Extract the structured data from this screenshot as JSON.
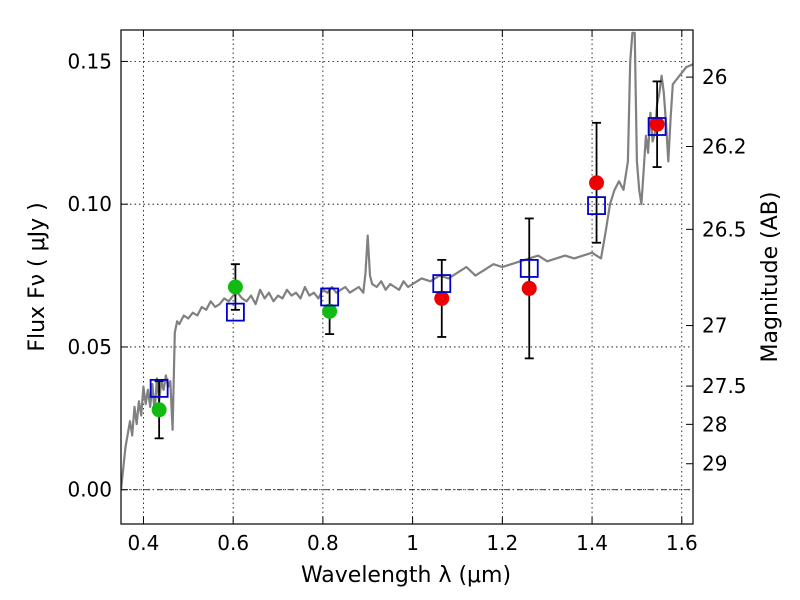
{
  "chart_data": {
    "type": "scatter",
    "xlabel": "Wavelength  λ (μm)",
    "ylabel": "Flux  Fν  ( μJy )",
    "y2label": "Magnitude (AB)",
    "xlim": [
      0.35,
      1.625
    ],
    "ylim": [
      -0.012,
      0.161
    ],
    "xticks": [
      0.4,
      0.6,
      0.8,
      1.0,
      1.2,
      1.4,
      1.6
    ],
    "xtick_labels": [
      "0.4",
      "0.6",
      "0.8",
      "1",
      "1.2",
      "1.4",
      "1.6"
    ],
    "yticks": [
      0.0,
      0.05,
      0.1,
      0.15
    ],
    "ytick_labels": [
      "0.00",
      "0.05",
      "0.10",
      "0.15"
    ],
    "y2ticks": [
      {
        "label": "26",
        "flux": 0.1445
      },
      {
        "label": "26.2",
        "flux": 0.1202
      },
      {
        "label": "26.5",
        "flux": 0.0912
      },
      {
        "label": "27",
        "flux": 0.0575
      },
      {
        "label": "27.5",
        "flux": 0.0363
      },
      {
        "label": "28",
        "flux": 0.0229
      },
      {
        "label": "29",
        "flux": 0.0091
      }
    ],
    "grid": true,
    "zero_line": true,
    "colors": {
      "sed": "#808080",
      "green_points": "#11bb11",
      "red_points": "#ee0000",
      "model_boxes": "#0000cc",
      "errorbars": "#000000"
    },
    "sed_model": {
      "x": [
        0.35,
        0.36,
        0.37,
        0.375,
        0.38,
        0.385,
        0.39,
        0.395,
        0.4,
        0.405,
        0.41,
        0.415,
        0.42,
        0.425,
        0.43,
        0.435,
        0.44,
        0.445,
        0.45,
        0.455,
        0.46,
        0.465,
        0.47,
        0.475,
        0.48,
        0.49,
        0.5,
        0.51,
        0.52,
        0.53,
        0.54,
        0.55,
        0.56,
        0.57,
        0.58,
        0.59,
        0.6,
        0.61,
        0.62,
        0.63,
        0.64,
        0.65,
        0.66,
        0.67,
        0.68,
        0.69,
        0.7,
        0.71,
        0.72,
        0.73,
        0.74,
        0.75,
        0.76,
        0.77,
        0.78,
        0.79,
        0.8,
        0.81,
        0.82,
        0.83,
        0.84,
        0.85,
        0.86,
        0.87,
        0.88,
        0.89,
        0.895,
        0.9,
        0.905,
        0.91,
        0.92,
        0.93,
        0.94,
        0.95,
        0.96,
        0.97,
        0.98,
        0.99,
        1.0,
        1.02,
        1.04,
        1.06,
        1.08,
        1.1,
        1.12,
        1.14,
        1.16,
        1.18,
        1.2,
        1.22,
        1.24,
        1.26,
        1.28,
        1.3,
        1.32,
        1.34,
        1.36,
        1.38,
        1.4,
        1.41,
        1.42,
        1.43,
        1.44,
        1.45,
        1.46,
        1.47,
        1.48,
        1.485,
        1.49,
        1.495,
        1.5,
        1.505,
        1.51,
        1.515,
        1.52,
        1.525,
        1.53,
        1.535,
        1.54,
        1.545,
        1.55,
        1.555,
        1.56,
        1.565,
        1.57,
        1.575,
        1.58,
        1.59,
        1.6,
        1.61,
        1.625
      ],
      "y": [
        0.0,
        0.015,
        0.024,
        0.019,
        0.029,
        0.023,
        0.031,
        0.026,
        0.036,
        0.03,
        0.035,
        0.029,
        0.037,
        0.027,
        0.039,
        0.031,
        0.038,
        0.035,
        0.04,
        0.036,
        0.038,
        0.021,
        0.055,
        0.059,
        0.058,
        0.061,
        0.06,
        0.062,
        0.061,
        0.064,
        0.063,
        0.066,
        0.064,
        0.065,
        0.067,
        0.066,
        0.068,
        0.069,
        0.067,
        0.066,
        0.068,
        0.065,
        0.07,
        0.067,
        0.069,
        0.066,
        0.068,
        0.067,
        0.07,
        0.068,
        0.069,
        0.067,
        0.071,
        0.068,
        0.069,
        0.067,
        0.07,
        0.069,
        0.071,
        0.069,
        0.07,
        0.071,
        0.069,
        0.07,
        0.071,
        0.069,
        0.076,
        0.089,
        0.075,
        0.072,
        0.071,
        0.073,
        0.07,
        0.072,
        0.071,
        0.07,
        0.073,
        0.071,
        0.072,
        0.074,
        0.073,
        0.075,
        0.074,
        0.076,
        0.078,
        0.075,
        0.077,
        0.079,
        0.078,
        0.079,
        0.08,
        0.081,
        0.082,
        0.08,
        0.081,
        0.082,
        0.081,
        0.082,
        0.083,
        0.082,
        0.081,
        0.09,
        0.1,
        0.105,
        0.108,
        0.105,
        0.115,
        0.15,
        0.16,
        0.16,
        0.115,
        0.105,
        0.1,
        0.112,
        0.124,
        0.118,
        0.132,
        0.122,
        0.125,
        0.135,
        0.139,
        0.145,
        0.139,
        0.128,
        0.115,
        0.13,
        0.142,
        0.144,
        0.146,
        0.148,
        0.149
      ]
    },
    "observed_green": [
      {
        "x": 0.435,
        "y": 0.028,
        "err": 0.01
      },
      {
        "x": 0.605,
        "y": 0.071,
        "err": 0.008
      },
      {
        "x": 0.815,
        "y": 0.0625,
        "err": 0.008
      }
    ],
    "observed_red": [
      {
        "x": 1.065,
        "y": 0.067,
        "err": 0.0135
      },
      {
        "x": 1.26,
        "y": 0.0705,
        "err": 0.0245
      },
      {
        "x": 1.41,
        "y": 0.1075,
        "err": 0.021
      },
      {
        "x": 1.545,
        "y": 0.128,
        "err": 0.015
      }
    ],
    "model_boxes": [
      {
        "x": 0.435,
        "y": 0.0355
      },
      {
        "x": 0.605,
        "y": 0.0622
      },
      {
        "x": 0.815,
        "y": 0.0675
      },
      {
        "x": 1.065,
        "y": 0.0722
      },
      {
        "x": 1.26,
        "y": 0.0775
      },
      {
        "x": 1.41,
        "y": 0.0995
      },
      {
        "x": 1.545,
        "y": 0.1272
      }
    ]
  }
}
